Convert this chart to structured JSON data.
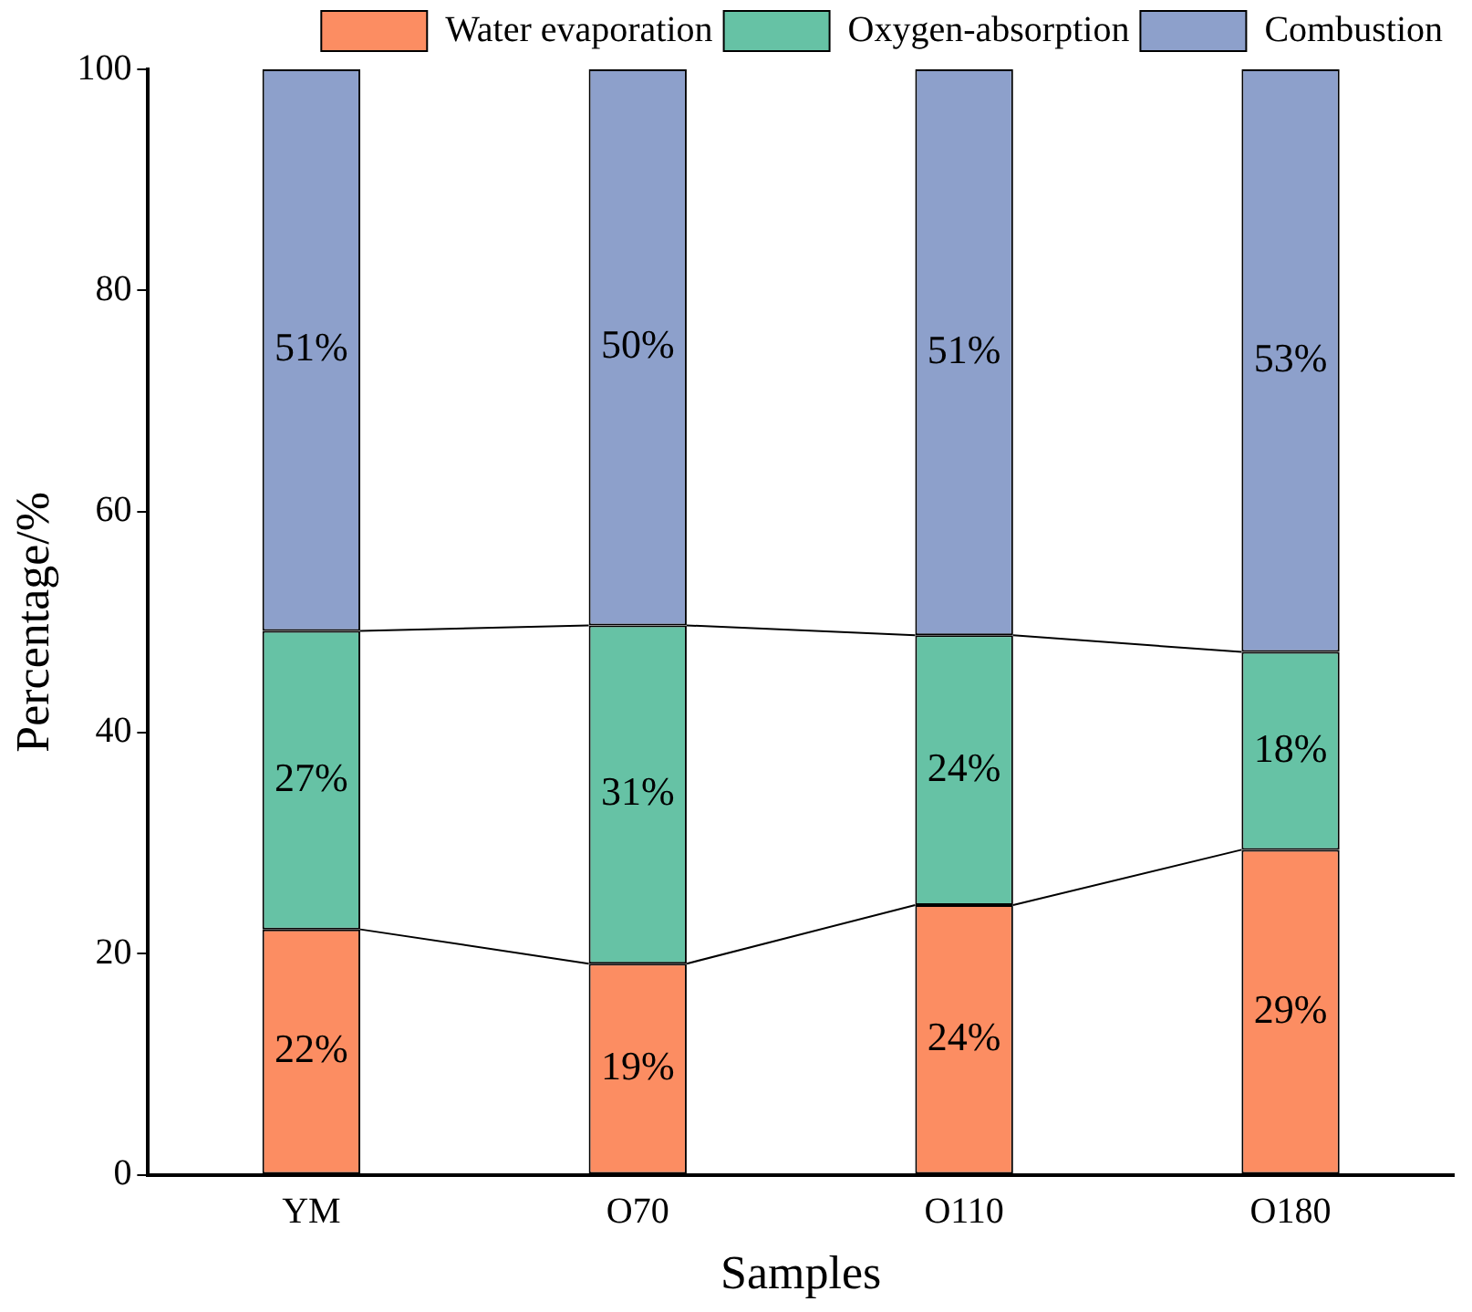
{
  "chart_data": {
    "type": "bar",
    "stacked": true,
    "xlabel": "Samples",
    "ylabel": "Percentage/%",
    "categories": [
      "YM",
      "O70",
      "O110",
      "O180"
    ],
    "series": [
      {
        "name": "Water evaporation",
        "color": "#fc8d62",
        "values": [
          22.2,
          19.1,
          24.4,
          29.4
        ],
        "value_labels": [
          "22%",
          "19%",
          "24%",
          "29%"
        ]
      },
      {
        "name": "Oxygen-absorption",
        "color": "#66c2a5",
        "values": [
          27.0,
          30.6,
          24.4,
          17.9
        ],
        "value_labels": [
          "27%",
          "31%",
          "24%",
          "18%"
        ]
      },
      {
        "name": "Combustion",
        "color": "#8da0cb",
        "values": [
          50.8,
          50.3,
          51.2,
          52.7
        ],
        "value_labels": [
          "51%",
          "50%",
          "51%",
          "53%"
        ]
      }
    ],
    "ylim": [
      0,
      100
    ],
    "yticks": [
      0,
      20,
      40,
      60,
      80,
      100
    ],
    "grid": false,
    "legend": "top"
  }
}
